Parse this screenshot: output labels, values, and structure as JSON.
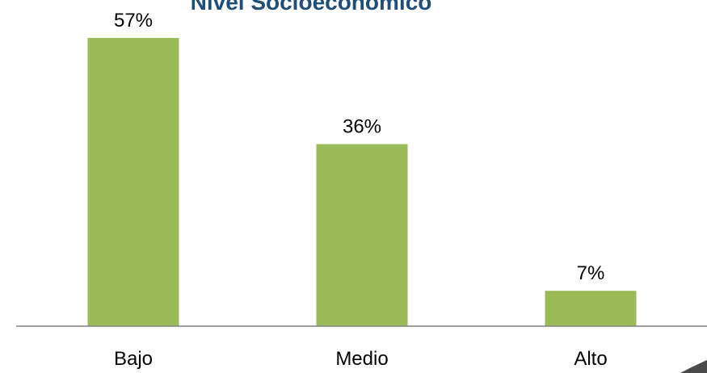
{
  "chart_data": {
    "type": "bar",
    "title": "Nivel Socioeconómico",
    "categories": [
      "Bajo",
      "Medio",
      "Alto"
    ],
    "values": [
      57,
      36,
      7
    ],
    "data_labels": [
      "57%",
      "36%",
      "7%"
    ],
    "ylim": [
      0,
      60
    ],
    "grid": false,
    "legend": "none",
    "colors": {
      "bar": "#9bbb59",
      "title": "#1f4e79",
      "axis": "#808080"
    }
  }
}
